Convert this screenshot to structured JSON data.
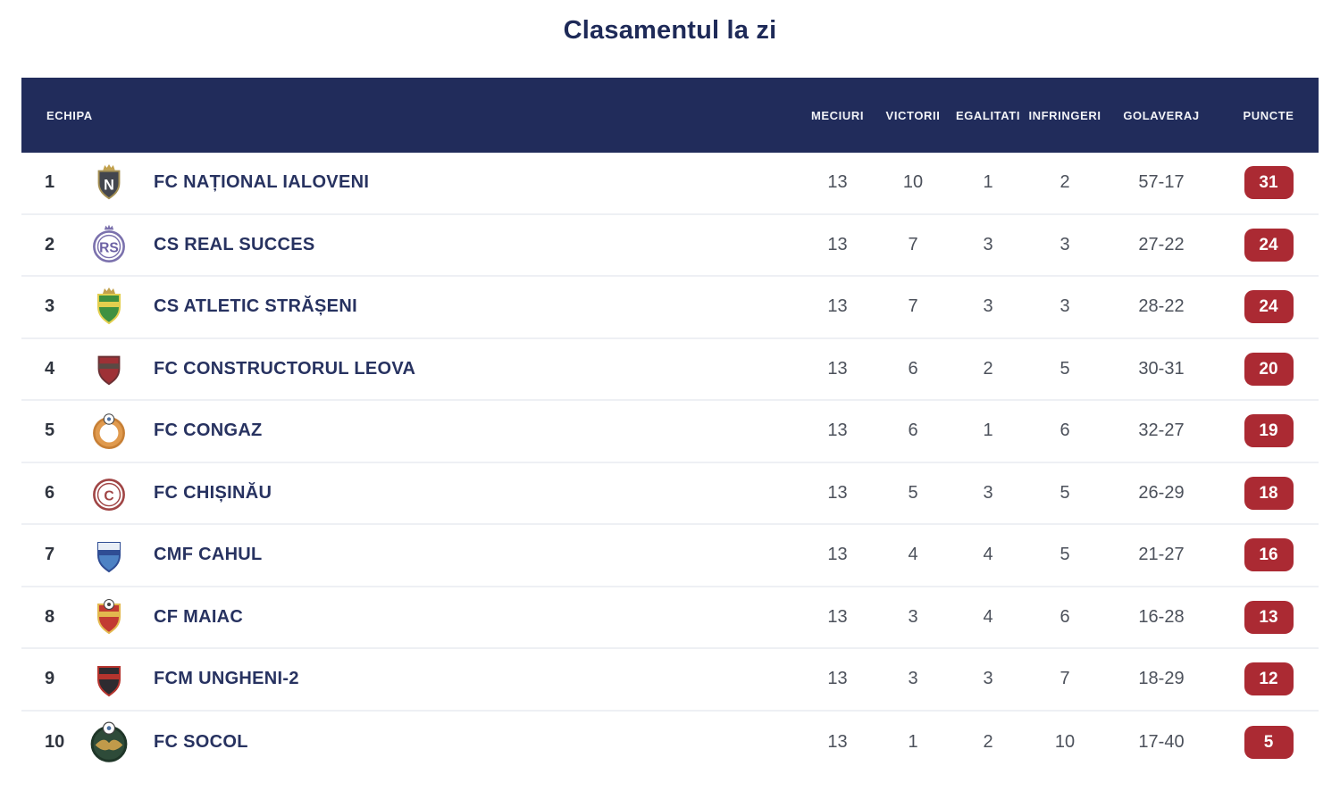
{
  "page": {
    "title": "Clasamentul la zi"
  },
  "colors": {
    "header_bg": "#212c5b",
    "header_text": "#f2f3f7",
    "title_color": "#1e2a58",
    "team_name_color": "#273260",
    "stat_color": "#4c515b",
    "row_divider": "#eef0f4",
    "badge_bg": "#ab2a33",
    "badge_text": "#ffffff"
  },
  "table": {
    "columns": [
      {
        "key": "echipa",
        "label": "ECHIPA"
      },
      {
        "key": "meciuri",
        "label": "MECIURI"
      },
      {
        "key": "victorii",
        "label": "VICTORII"
      },
      {
        "key": "egalitati",
        "label": "EGALITATI"
      },
      {
        "key": "infringeri",
        "label": "INFRINGERI"
      },
      {
        "key": "golaveraj",
        "label": "GOLAVERAJ"
      },
      {
        "key": "puncte",
        "label": "PUNCTE"
      }
    ],
    "rows": [
      {
        "rank": "1",
        "name": "FC NAȚIONAL IALOVENI",
        "meciuri": "13",
        "victorii": "10",
        "egalitati": "1",
        "infringeri": "2",
        "golaveraj": "57-17",
        "puncte": "31",
        "logo": {
          "icon": "fc-national-ialoveni-crest",
          "kind": "shield",
          "body": "#43464e",
          "trim": "#a38e52",
          "crown": "#c2a14d",
          "monogram": "N",
          "monogram_color": "#ffffff",
          "size": 42
        }
      },
      {
        "rank": "2",
        "name": "CS REAL SUCCES",
        "meciuri": "13",
        "victorii": "7",
        "egalitati": "3",
        "infringeri": "3",
        "golaveraj": "27-22",
        "puncte": "24",
        "logo": {
          "icon": "cs-real-succes-crest",
          "kind": "circle",
          "body": "#ffffff",
          "ring": "#7b71ad",
          "crown": "#7b71ad",
          "monogram": "RS",
          "monogram_color": "#6c61a4",
          "size": 46
        }
      },
      {
        "rank": "3",
        "name": "CS ATLETIC STRĂȘENI",
        "meciuri": "13",
        "victorii": "7",
        "egalitati": "3",
        "infringeri": "3",
        "golaveraj": "28-22",
        "puncte": "24",
        "logo": {
          "icon": "cs-atletic-straseni-crest",
          "kind": "shield",
          "body": "#3f9140",
          "trim": "#e3cf4e",
          "crown": "#c2a14d",
          "band": "#e3cf4e",
          "monogram": "",
          "size": 44
        }
      },
      {
        "rank": "4",
        "name": "FC CONSTRUCTORUL LEOVA",
        "meciuri": "13",
        "victorii": "6",
        "egalitati": "2",
        "infringeri": "5",
        "golaveraj": "30-31",
        "puncte": "20",
        "logo": {
          "icon": "fc-constructorul-leova-crest",
          "kind": "shield",
          "body": "#9e3136",
          "trim": "#6b3134",
          "band": "#5a4a44",
          "monogram": "",
          "size": 42
        }
      },
      {
        "rank": "5",
        "name": "FC CONGAZ",
        "meciuri": "13",
        "victorii": "6",
        "egalitati": "1",
        "infringeri": "6",
        "golaveraj": "32-27",
        "puncte": "19",
        "logo": {
          "icon": "fc-congaz-crest",
          "kind": "circle",
          "body": "#e09a4e",
          "ring": "#c77f35",
          "inner": "#ffffff",
          "ball": true,
          "monogram": "",
          "size": 46
        }
      },
      {
        "rank": "6",
        "name": "FC CHIȘINĂU",
        "meciuri": "13",
        "victorii": "5",
        "egalitati": "3",
        "infringeri": "5",
        "golaveraj": "26-29",
        "puncte": "18",
        "logo": {
          "icon": "fc-chisinau-crest",
          "kind": "circle",
          "body": "#ffffff",
          "ring": "#a04545",
          "monogram": "C",
          "monogram_color": "#a04545",
          "size": 46
        }
      },
      {
        "rank": "7",
        "name": "CMF CAHUL",
        "meciuri": "13",
        "victorii": "4",
        "egalitati": "4",
        "infringeri": "5",
        "golaveraj": "21-27",
        "puncte": "16",
        "logo": {
          "icon": "cmf-cahul-crest",
          "kind": "shield",
          "body": "#4d82c4",
          "trim": "#2f4d94",
          "top": "#e8eef6",
          "band": "#2f4d94",
          "monogram": "",
          "size": 44
        }
      },
      {
        "rank": "8",
        "name": "CF MAIAC",
        "meciuri": "13",
        "victorii": "3",
        "egalitati": "4",
        "infringeri": "6",
        "golaveraj": "16-28",
        "puncte": "13",
        "logo": {
          "icon": "cf-maiac-crest",
          "kind": "shield",
          "body": "#c23a32",
          "trim": "#e3b84e",
          "ball": true,
          "band": "#e3b84e",
          "monogram": "",
          "size": 44
        }
      },
      {
        "rank": "9",
        "name": "FCM UNGHENI-2",
        "meciuri": "13",
        "victorii": "3",
        "egalitati": "3",
        "infringeri": "7",
        "golaveraj": "18-29",
        "puncte": "12",
        "logo": {
          "icon": "fcm-ungheni-2-crest",
          "kind": "shield",
          "body": "#2d2b30",
          "trim": "#b5342e",
          "band": "#b5342e",
          "monogram": "",
          "size": 44
        }
      },
      {
        "rank": "10",
        "name": "FC SOCOL",
        "meciuri": "13",
        "victorii": "1",
        "egalitati": "2",
        "infringeri": "10",
        "golaveraj": "17-40",
        "puncte": "5",
        "logo": {
          "icon": "fc-socol-crest",
          "kind": "circle",
          "body": "#2e4b39",
          "ring": "#1f3628",
          "wings": "#c09a4a",
          "ball": true,
          "monogram": "",
          "size": 56
        }
      }
    ]
  }
}
